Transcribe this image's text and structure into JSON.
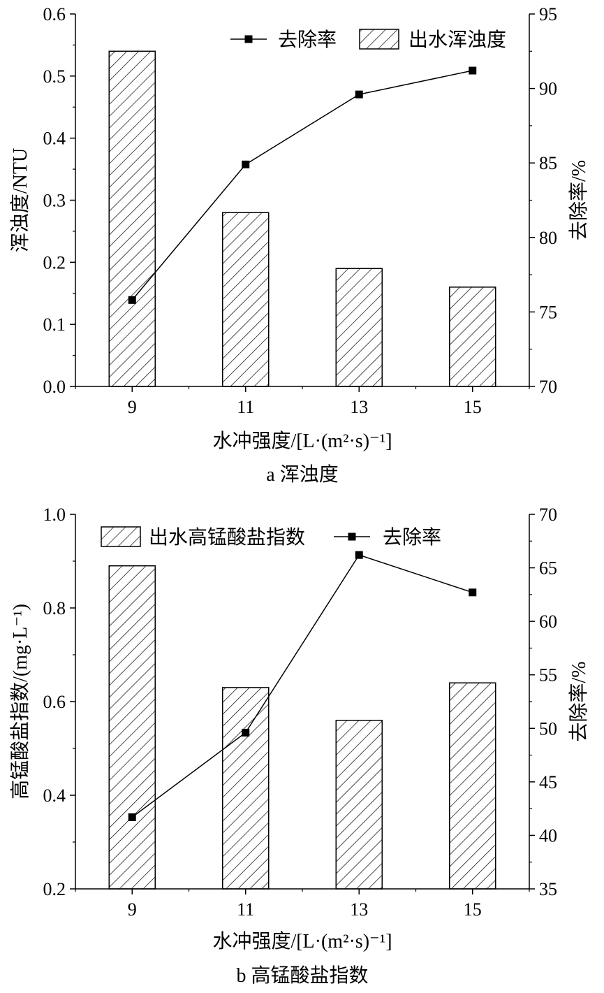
{
  "chart_data": [
    {
      "type": "bar",
      "caption": "a  浑浊度",
      "categories": [
        "9",
        "11",
        "13",
        "15"
      ],
      "xlabel": "水冲强度/[L·(m²·s)⁻¹]",
      "ylabel": "浑浊度/NTU",
      "y2label": "去除率/%",
      "ylim": [
        0,
        0.6
      ],
      "y2lim": [
        70,
        95
      ],
      "yticks": [
        "0.0",
        "0.1",
        "0.2",
        "0.3",
        "0.4",
        "0.5",
        "0.6"
      ],
      "y2ticks": [
        "70",
        "75",
        "80",
        "85",
        "90",
        "95"
      ],
      "legend_placement": "top-right",
      "grid": false,
      "series": [
        {
          "name": "出水浑浊度",
          "kind": "bar-hatched",
          "axis": "left",
          "values": [
            0.54,
            0.28,
            0.19,
            0.16
          ]
        },
        {
          "name": "去除率",
          "kind": "line-square",
          "axis": "right",
          "values": [
            75.8,
            84.9,
            89.6,
            91.2
          ]
        }
      ]
    },
    {
      "type": "bar",
      "caption": "b  高锰酸盐指数",
      "categories": [
        "9",
        "11",
        "13",
        "15"
      ],
      "xlabel": "水冲强度/[L·(m²·s)⁻¹]",
      "ylabel": "高锰酸盐指数/(mg·L⁻¹)",
      "y2label": "去除率/%",
      "ylim": [
        0.2,
        1.0
      ],
      "y2lim": [
        35,
        70
      ],
      "yticks": [
        "0.2",
        "0.4",
        "0.6",
        "0.8",
        "1.0"
      ],
      "y2ticks": [
        "35",
        "40",
        "45",
        "50",
        "55",
        "60",
        "65",
        "70"
      ],
      "legend_placement": "top",
      "grid": false,
      "series": [
        {
          "name": "出水高锰酸盐指数",
          "kind": "bar-hatched",
          "axis": "left",
          "values": [
            0.89,
            0.63,
            0.56,
            0.64
          ]
        },
        {
          "name": "去除率",
          "kind": "line-square",
          "axis": "right",
          "values": [
            41.7,
            49.6,
            66.2,
            62.7
          ]
        }
      ]
    }
  ]
}
